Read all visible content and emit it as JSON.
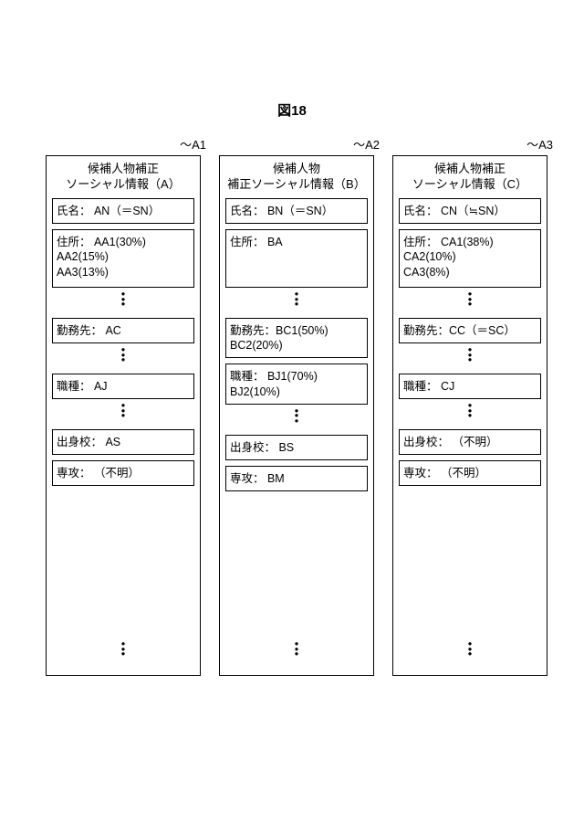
{
  "figure_title": "図18",
  "columns": [
    {
      "label": "A1",
      "title": "候補人物補正\nソーシャル情報（A）",
      "fields": [
        {
          "text": "氏名：  AN（＝SN）",
          "tall": false,
          "dots_after": false
        },
        {
          "text": "住所：  AA1(30%)\n            AA2(15%)\n            AA3(13%)",
          "tall": true,
          "dots_after": true
        },
        {
          "text": "勤務先：  AC",
          "tall": false,
          "dots_after": true
        },
        {
          "text": "職種：  AJ",
          "tall": false,
          "dots_after": true
        },
        {
          "text": "出身校：  AS",
          "tall": false,
          "dots_after": false
        },
        {
          "text": "専攻：  （不明）",
          "tall": false,
          "dots_after": false
        }
      ]
    },
    {
      "label": "A2",
      "title": "候補人物\n補正ソーシャル情報（B）",
      "fields": [
        {
          "text": "氏名：  BN（＝SN）",
          "tall": false,
          "dots_after": false
        },
        {
          "text": "住所：  BA",
          "tall": true,
          "dots_after": true
        },
        {
          "text": "勤務先：BC1(50%)\n            BC2(20%)",
          "tall": false,
          "dots_after": false
        },
        {
          "text": "職種：  BJ1(70%)\n            BJ2(10%)",
          "tall": false,
          "dots_after": true
        },
        {
          "text": "出身校：  BS",
          "tall": false,
          "dots_after": false
        },
        {
          "text": "専攻：  BM",
          "tall": false,
          "dots_after": false
        }
      ]
    },
    {
      "label": "A3",
      "title": "候補人物補正\nソーシャル情報（C）",
      "fields": [
        {
          "text": "氏名：  CN（≒SN）",
          "tall": false,
          "dots_after": false
        },
        {
          "text": "住所：  CA1(38%)\n            CA2(10%)\n            CA3(8%)",
          "tall": true,
          "dots_after": true
        },
        {
          "text": "勤務先：CC（＝SC）",
          "tall": false,
          "dots_after": true
        },
        {
          "text": "職種：  CJ",
          "tall": false,
          "dots_after": true
        },
        {
          "text": "出身校：  （不明）",
          "tall": false,
          "dots_after": false
        },
        {
          "text": "専攻：  （不明）",
          "tall": false,
          "dots_after": false
        }
      ]
    }
  ]
}
